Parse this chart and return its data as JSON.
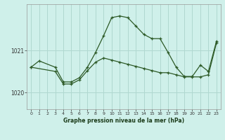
{
  "title": "Graphe pression niveau de la mer (hPa)",
  "bg_color": "#cff0ea",
  "line_color": "#2d5a27",
  "grid_color": "#b0d8d0",
  "xlim": [
    -0.5,
    23.5
  ],
  "ylim": [
    1019.6,
    1022.1
  ],
  "yticks": [
    1020,
    1021
  ],
  "xticks": [
    0,
    1,
    2,
    3,
    4,
    5,
    6,
    7,
    8,
    9,
    10,
    11,
    12,
    13,
    14,
    15,
    16,
    17,
    18,
    19,
    20,
    21,
    22,
    23
  ],
  "line1_x": [
    0,
    1,
    3,
    4,
    5,
    6,
    7,
    8,
    9,
    10,
    11,
    12,
    13,
    14,
    15,
    16,
    17,
    18,
    19,
    20,
    21,
    22,
    23
  ],
  "line1_y": [
    1020.6,
    1020.75,
    1020.6,
    1020.25,
    1020.25,
    1020.35,
    1020.6,
    1020.95,
    1021.35,
    1021.78,
    1021.82,
    1021.78,
    1021.58,
    1021.38,
    1021.28,
    1021.28,
    1020.95,
    1020.6,
    1020.38,
    1020.38,
    1020.65,
    1020.5,
    1021.22
  ],
  "line2_x": [
    0,
    3,
    4,
    5,
    6,
    7,
    8,
    9,
    10,
    11,
    12,
    13,
    14,
    15,
    16,
    17,
    18,
    19,
    20,
    21,
    22,
    23
  ],
  "line2_y": [
    1020.6,
    1020.5,
    1020.2,
    1020.2,
    1020.3,
    1020.52,
    1020.72,
    1020.82,
    1020.77,
    1020.72,
    1020.67,
    1020.62,
    1020.57,
    1020.52,
    1020.47,
    1020.47,
    1020.42,
    1020.37,
    1020.37,
    1020.37,
    1020.42,
    1021.18
  ]
}
